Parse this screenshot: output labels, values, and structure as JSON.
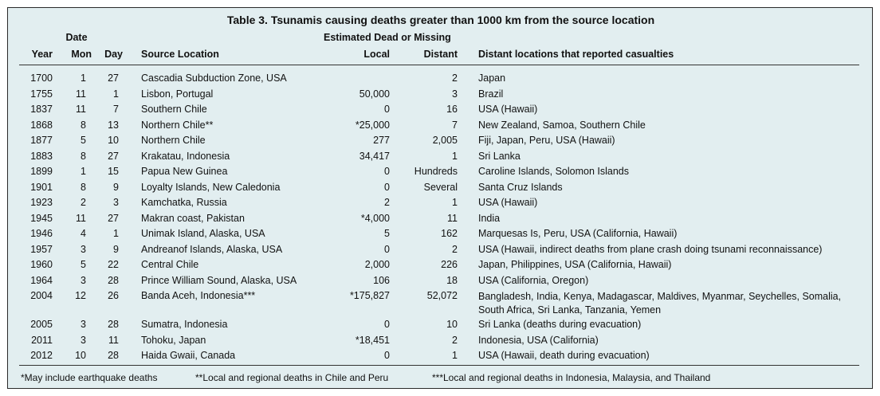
{
  "title": "Table 3.  Tsunamis causing deaths greater than 1000 km from the source location",
  "headers": {
    "date_group": "Date",
    "estimated_group": "Estimated Dead or Missing",
    "year": "Year",
    "mon": "Mon",
    "day": "Day",
    "source": "Source Location",
    "local": "Local",
    "distant": "Distant",
    "locations": "Distant locations that reported casualties"
  },
  "rows": [
    {
      "year": "1700",
      "mon": "1",
      "day": "27",
      "source": "Cascadia Subduction Zone, USA",
      "local": "",
      "distant": "2",
      "locations": "Japan"
    },
    {
      "year": "1755",
      "mon": "11",
      "day": "1",
      "source": "Lisbon, Portugal",
      "local": "50,000",
      "distant": "3",
      "locations": "Brazil"
    },
    {
      "year": "1837",
      "mon": "11",
      "day": "7",
      "source": "Southern Chile",
      "local": "0",
      "distant": "16",
      "locations": "USA (Hawaii)"
    },
    {
      "year": "1868",
      "mon": "8",
      "day": "13",
      "source": "Northern Chile**",
      "local": "*25,000",
      "distant": "7",
      "locations": "New Zealand, Samoa, Southern Chile"
    },
    {
      "year": "1877",
      "mon": "5",
      "day": "10",
      "source": "Northern Chile",
      "local": "277",
      "distant": "2,005",
      "locations": "Fiji, Japan, Peru, USA (Hawaii)"
    },
    {
      "year": "1883",
      "mon": "8",
      "day": "27",
      "source": "Krakatau, Indonesia",
      "local": "34,417",
      "distant": "1",
      "locations": "Sri Lanka"
    },
    {
      "year": "1899",
      "mon": "1",
      "day": "15",
      "source": "Papua New Guinea",
      "local": "0",
      "distant": "Hundreds",
      "locations": "Caroline Islands, Solomon Islands"
    },
    {
      "year": "1901",
      "mon": "8",
      "day": "9",
      "source": "Loyalty Islands, New Caledonia",
      "local": "0",
      "distant": "Several",
      "locations": "Santa Cruz Islands"
    },
    {
      "year": "1923",
      "mon": "2",
      "day": "3",
      "source": "Kamchatka, Russia",
      "local": "2",
      "distant": "1",
      "locations": "USA (Hawaii)"
    },
    {
      "year": "1945",
      "mon": "11",
      "day": "27",
      "source": "Makran coast, Pakistan",
      "local": "*4,000",
      "distant": "11",
      "locations": "India"
    },
    {
      "year": "1946",
      "mon": "4",
      "day": "1",
      "source": "Unimak Island, Alaska, USA",
      "local": "5",
      "distant": "162",
      "locations": "Marquesas Is, Peru, USA (California, Hawaii)"
    },
    {
      "year": "1957",
      "mon": "3",
      "day": "9",
      "source": "Andreanof Islands, Alaska, USA",
      "local": "0",
      "distant": "2",
      "locations": "USA (Hawaii, indirect deaths from plane crash doing tsunami reconnaissance)"
    },
    {
      "year": "1960",
      "mon": "5",
      "day": "22",
      "source": "Central Chile",
      "local": "2,000",
      "distant": "226",
      "locations": "Japan, Philippines, USA (California, Hawaii)"
    },
    {
      "year": "1964",
      "mon": "3",
      "day": "28",
      "source": "Prince William Sound, Alaska, USA",
      "local": "106",
      "distant": "18",
      "locations": "USA (California, Oregon)"
    },
    {
      "year": "2004",
      "mon": "12",
      "day": "26",
      "source": "Banda Aceh, Indonesia***",
      "local": "*175,827",
      "distant": "52,072",
      "locations": "Bangladesh, India, Kenya, Madagascar, Maldives, Myanmar, Seychelles, Somalia, South Africa, Sri Lanka, Tanzania, Yemen"
    },
    {
      "year": "2005",
      "mon": "3",
      "day": "28",
      "source": "Sumatra, Indonesia",
      "local": "0",
      "distant": "10",
      "locations": "Sri Lanka (deaths during evacuation)"
    },
    {
      "year": "2011",
      "mon": "3",
      "day": "11",
      "source": "Tohoku, Japan",
      "local": "*18,451",
      "distant": "2",
      "locations": "Indonesia, USA (California)"
    },
    {
      "year": "2012",
      "mon": "10",
      "day": "28",
      "source": "Haida Gwaii, Canada",
      "local": "0",
      "distant": "1",
      "locations": "USA (Hawaii, death during evacuation)"
    }
  ],
  "footnotes": [
    "*May include earthquake deaths",
    "**Local and regional deaths in Chile and Peru",
    "***Local and regional deaths in Indonesia, Malaysia, and Thailand"
  ]
}
